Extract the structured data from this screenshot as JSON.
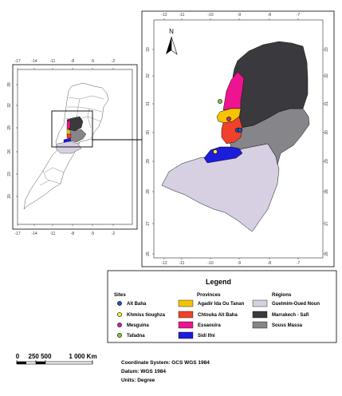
{
  "north_label": "N",
  "colors": {
    "agadir": "#f5c400",
    "chtouka": "#f0412b",
    "essaouira": "#ee148f",
    "sidi_ifni": "#1c1cdc",
    "guelmim": "#d6d0e2",
    "marrakech": "#3a393d",
    "souss": "#86858a",
    "site_ait_baha": "#1d55c4",
    "site_khmiss": "#f4f42a",
    "site_mesguina": "#c8239a",
    "site_tafadna": "#7ec83a"
  },
  "main_map": {
    "x_ticks": [
      "-12",
      "-11",
      "-10",
      "-9",
      "-8",
      "-7"
    ],
    "y_ticks": [
      "33",
      "32",
      "31",
      "30",
      "29",
      "28",
      "27",
      "26"
    ]
  },
  "inset_map": {
    "x_ticks": [
      "-17",
      "-14",
      "-11",
      "-8",
      "-5",
      "-2"
    ],
    "y_ticks": [
      "35",
      "32",
      "29",
      "26",
      "23",
      "20"
    ]
  },
  "legend": {
    "title": "Legend",
    "sites_heading": "Sites",
    "provinces_heading": "Provinces",
    "regions_heading": "Régions",
    "sites": [
      "Aït Baha",
      "Khmiss tioughza",
      "Mesguina",
      "Tafadna"
    ],
    "provinces": [
      "Agadir Ida Ou Tanan",
      "Chtouka Ait Baha",
      "Essaouira",
      "Sidi Ifni"
    ],
    "regions": [
      "Guelmim-Oued Noun",
      "Marrakech - Safi",
      "Souss Massa"
    ]
  },
  "scale_bar": {
    "labels": [
      "0",
      "250 500",
      "1 000 Km"
    ]
  },
  "metadata": {
    "coord_system": "Coordinate System: GCS WGS 1984",
    "datum": "Datum: WGS 1984",
    "units": "Units: Degree"
  }
}
